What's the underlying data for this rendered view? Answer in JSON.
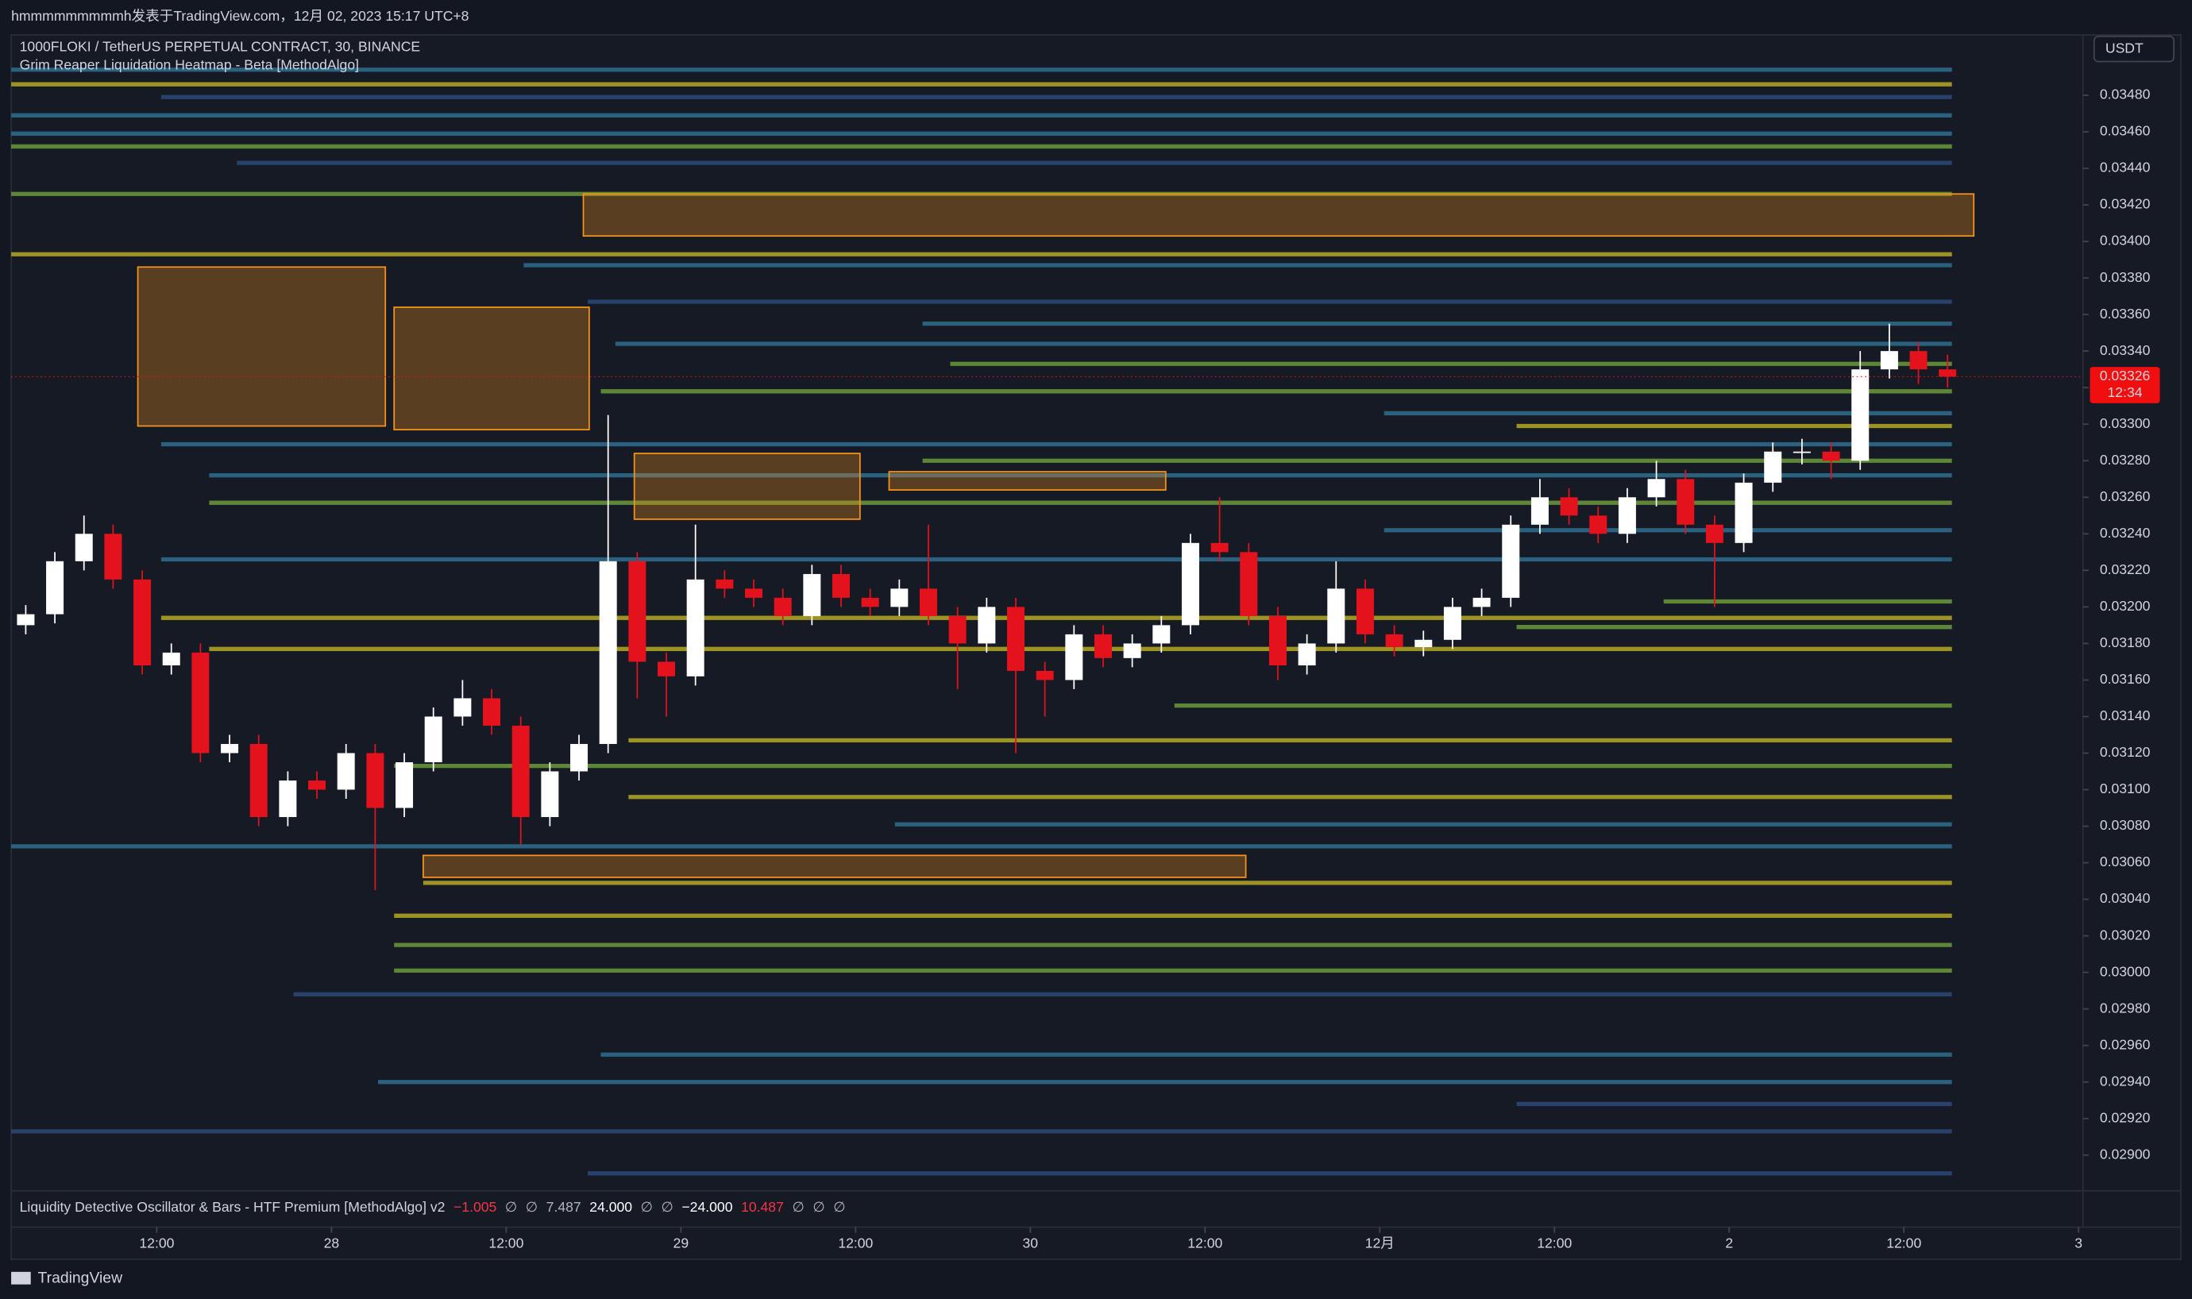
{
  "header": "hmmmmmmmmmh发表于TradingView.com，12月 02, 2023 15:17 UTC+8",
  "chart_data": {
    "type": "candlestick",
    "symbol": "1000FLOKI / TetherUS PERPETUAL CONTRACT, 30, BINANCE",
    "indicator": "Grim Reaper Liquidation Heatmap - Beta [MethodAlgo]",
    "currency": "USDT",
    "up_color": "#ffffff",
    "down_color": "#e3121c",
    "xlim": [
      0,
      142.3
    ],
    "ylim": [
      0.02882,
      0.03513
    ],
    "xticks": [
      {
        "value": 10,
        "label": "12:00"
      },
      {
        "value": 22,
        "label": "28"
      },
      {
        "value": 34,
        "label": "12:00"
      },
      {
        "value": 46,
        "label": "29"
      },
      {
        "value": 58,
        "label": "12:00"
      },
      {
        "value": 70,
        "label": "30"
      },
      {
        "value": 82,
        "label": "12:00"
      },
      {
        "value": 94,
        "label": "12月"
      },
      {
        "value": 106,
        "label": "12:00"
      },
      {
        "value": 118,
        "label": "2"
      },
      {
        "value": 130,
        "label": "12:00"
      },
      {
        "value": 142,
        "label": "3"
      }
    ],
    "yticks": [
      {
        "value": 0.0348,
        "label": "0.03480"
      },
      {
        "value": 0.0346,
        "label": "0.03460"
      },
      {
        "value": 0.0344,
        "label": "0.03440"
      },
      {
        "value": 0.0342,
        "label": "0.03420"
      },
      {
        "value": 0.034,
        "label": "0.03400"
      },
      {
        "value": 0.0338,
        "label": "0.03380"
      },
      {
        "value": 0.0336,
        "label": "0.03360"
      },
      {
        "value": 0.0334,
        "label": "0.03340"
      },
      {
        "value": 0.0332,
        "label": "0.03320"
      },
      {
        "value": 0.033,
        "label": "0.03300"
      },
      {
        "value": 0.0328,
        "label": "0.03280"
      },
      {
        "value": 0.0326,
        "label": "0.03260"
      },
      {
        "value": 0.0324,
        "label": "0.03240"
      },
      {
        "value": 0.0322,
        "label": "0.03220"
      },
      {
        "value": 0.032,
        "label": "0.03200"
      },
      {
        "value": 0.0318,
        "label": "0.03180"
      },
      {
        "value": 0.0316,
        "label": "0.03160"
      },
      {
        "value": 0.0314,
        "label": "0.03140"
      },
      {
        "value": 0.0312,
        "label": "0.03120"
      },
      {
        "value": 0.031,
        "label": "0.03100"
      },
      {
        "value": 0.0308,
        "label": "0.03080"
      },
      {
        "value": 0.0306,
        "label": "0.03060"
      },
      {
        "value": 0.0304,
        "label": "0.03040"
      },
      {
        "value": 0.0302,
        "label": "0.03020"
      },
      {
        "value": 0.03,
        "label": "0.03000"
      },
      {
        "value": 0.0298,
        "label": "0.02980"
      },
      {
        "value": 0.0296,
        "label": "0.02960"
      },
      {
        "value": 0.0294,
        "label": "0.02940"
      },
      {
        "value": 0.0292,
        "label": "0.02920"
      },
      {
        "value": 0.029,
        "label": "0.02900"
      }
    ],
    "last_price": 0.03326,
    "countdown": "12:34",
    "last_color": "#f00e0e",
    "candles": {
      "x": [
        1,
        3,
        5,
        7,
        9,
        11,
        13,
        15,
        17,
        19,
        21,
        23,
        25,
        27,
        29,
        31,
        33,
        35,
        37,
        39,
        41,
        43,
        45,
        47,
        49,
        51,
        53,
        55,
        57,
        59,
        61,
        63,
        65,
        67,
        69,
        71,
        73,
        75,
        77,
        79,
        81,
        83,
        85,
        87,
        89,
        91,
        93,
        95,
        97,
        99,
        101,
        103,
        105,
        107,
        109,
        111,
        113,
        115,
        117,
        119,
        121,
        123,
        125,
        127,
        129,
        131,
        133
      ],
      "open": [
        0.0319,
        0.03196,
        0.03225,
        0.0324,
        0.03215,
        0.03168,
        0.03175,
        0.0312,
        0.03125,
        0.03085,
        0.03105,
        0.031,
        0.0312,
        0.0309,
        0.03115,
        0.0314,
        0.0315,
        0.03135,
        0.03085,
        0.0311,
        0.03125,
        0.03225,
        0.0317,
        0.03162,
        0.03215,
        0.0321,
        0.03205,
        0.03195,
        0.03218,
        0.03205,
        0.032,
        0.0321,
        0.03195,
        0.0318,
        0.032,
        0.03165,
        0.0316,
        0.03185,
        0.03172,
        0.0318,
        0.0319,
        0.03235,
        0.0323,
        0.03195,
        0.03168,
        0.0318,
        0.0321,
        0.03185,
        0.03178,
        0.03182,
        0.032,
        0.03205,
        0.03245,
        0.0326,
        0.0325,
        0.0324,
        0.0326,
        0.0327,
        0.03245,
        0.03235,
        0.03268,
        0.03285,
        0.03285,
        0.0328,
        0.0333,
        0.0334,
        0.0333
      ],
      "high": [
        0.03201,
        0.0323,
        0.0325,
        0.03245,
        0.0322,
        0.0318,
        0.0318,
        0.0313,
        0.0313,
        0.0311,
        0.0311,
        0.03125,
        0.03125,
        0.0312,
        0.03145,
        0.0316,
        0.03155,
        0.0314,
        0.03115,
        0.0313,
        0.03305,
        0.0323,
        0.03175,
        0.03245,
        0.0322,
        0.03215,
        0.0321,
        0.03223,
        0.03223,
        0.0321,
        0.03215,
        0.03245,
        0.032,
        0.03205,
        0.03205,
        0.0317,
        0.0319,
        0.0319,
        0.03185,
        0.03195,
        0.0324,
        0.0326,
        0.03235,
        0.032,
        0.03185,
        0.03225,
        0.03215,
        0.0319,
        0.03187,
        0.03205,
        0.0321,
        0.0325,
        0.0327,
        0.03265,
        0.03255,
        0.03265,
        0.0328,
        0.03275,
        0.0325,
        0.03273,
        0.0329,
        0.03292,
        0.0329,
        0.0334,
        0.03355,
        0.03345,
        0.03338
      ],
      "low": [
        0.03185,
        0.03191,
        0.0322,
        0.0321,
        0.03163,
        0.03163,
        0.03115,
        0.03115,
        0.0308,
        0.0308,
        0.03095,
        0.03095,
        0.03045,
        0.03085,
        0.0311,
        0.03135,
        0.0313,
        0.0307,
        0.0308,
        0.03105,
        0.0312,
        0.0315,
        0.0314,
        0.03157,
        0.03205,
        0.032,
        0.0319,
        0.0319,
        0.032,
        0.03195,
        0.03195,
        0.0319,
        0.03155,
        0.03175,
        0.0312,
        0.0314,
        0.03155,
        0.03167,
        0.03167,
        0.03175,
        0.03185,
        0.03225,
        0.0319,
        0.0316,
        0.03163,
        0.03175,
        0.0318,
        0.03173,
        0.03173,
        0.03177,
        0.03195,
        0.032,
        0.0324,
        0.03245,
        0.03235,
        0.03235,
        0.03255,
        0.0324,
        0.032,
        0.0323,
        0.03263,
        0.03278,
        0.0327,
        0.03275,
        0.03325,
        0.03322,
        0.0332
      ],
      "close": [
        0.03196,
        0.03225,
        0.0324,
        0.03215,
        0.03168,
        0.03175,
        0.0312,
        0.03125,
        0.03085,
        0.03105,
        0.031,
        0.0312,
        0.0309,
        0.03115,
        0.0314,
        0.0315,
        0.03135,
        0.03085,
        0.0311,
        0.03125,
        0.03225,
        0.0317,
        0.03162,
        0.03215,
        0.0321,
        0.03205,
        0.03195,
        0.03218,
        0.03205,
        0.032,
        0.0321,
        0.03195,
        0.0318,
        0.032,
        0.03165,
        0.0316,
        0.03185,
        0.03172,
        0.0318,
        0.0319,
        0.03235,
        0.0323,
        0.03195,
        0.03168,
        0.0318,
        0.0321,
        0.03185,
        0.03178,
        0.03182,
        0.032,
        0.03205,
        0.03245,
        0.0326,
        0.0325,
        0.0324,
        0.0326,
        0.0327,
        0.03245,
        0.03235,
        0.03268,
        0.03285,
        0.03285,
        0.0328,
        0.0333,
        0.0334,
        0.0333,
        0.03326
      ]
    },
    "levels_end": 133.3,
    "levels": [
      {
        "price": 0.03494,
        "start": 0,
        "color": "#2e6e8e"
      },
      {
        "price": 0.03486,
        "start": 0,
        "color": "#b5a824"
      },
      {
        "price": 0.03479,
        "start": 10.3,
        "color": "#2a4a7a"
      },
      {
        "price": 0.03469,
        "start": 0,
        "color": "#2e6e8e"
      },
      {
        "price": 0.03459,
        "start": 0,
        "color": "#2e6e8e"
      },
      {
        "price": 0.03452,
        "start": 0,
        "color": "#6a9a3a"
      },
      {
        "price": 0.03443,
        "start": 15.5,
        "color": "#2a4a7a"
      },
      {
        "price": 0.03426,
        "start": 0,
        "color": "#6a9a3a"
      },
      {
        "price": 0.03393,
        "start": 0,
        "color": "#b5a824"
      },
      {
        "price": 0.03387,
        "start": 35.2,
        "color": "#2e6e8e"
      },
      {
        "price": 0.03367,
        "start": 39.6,
        "color": "#2a4a7a"
      },
      {
        "price": 0.03355,
        "start": 62.6,
        "color": "#2e6e8e"
      },
      {
        "price": 0.03344,
        "start": 41.5,
        "color": "#2e6e8e"
      },
      {
        "price": 0.03333,
        "start": 64.5,
        "color": "#6a9a3a"
      },
      {
        "price": 0.03318,
        "start": 40.5,
        "color": "#6a9a3a"
      },
      {
        "price": 0.03306,
        "start": 94.3,
        "color": "#2e6e8e"
      },
      {
        "price": 0.03299,
        "start": 103.4,
        "color": "#b5a824"
      },
      {
        "price": 0.03289,
        "start": 10.3,
        "color": "#2e6e8e"
      },
      {
        "price": 0.0328,
        "start": 62.6,
        "color": "#6a9a3a"
      },
      {
        "price": 0.03272,
        "start": 13.6,
        "color": "#2e6e8e"
      },
      {
        "price": 0.03257,
        "start": 13.6,
        "color": "#6a9a3a"
      },
      {
        "price": 0.03242,
        "start": 94.3,
        "color": "#2e6e8e"
      },
      {
        "price": 0.03226,
        "start": 10.3,
        "color": "#2e6e8e"
      },
      {
        "price": 0.03203,
        "start": 113.5,
        "color": "#6a9a3a"
      },
      {
        "price": 0.03194,
        "start": 10.3,
        "color": "#b5a824"
      },
      {
        "price": 0.03189,
        "start": 103.4,
        "color": "#6a9a3a"
      },
      {
        "price": 0.03177,
        "start": 13.6,
        "color": "#b5a824"
      },
      {
        "price": 0.03146,
        "start": 79.9,
        "color": "#6a9a3a"
      },
      {
        "price": 0.03127,
        "start": 42.4,
        "color": "#b5a824"
      },
      {
        "price": 0.03113,
        "start": 26.3,
        "color": "#6a9a3a"
      },
      {
        "price": 0.03096,
        "start": 42.4,
        "color": "#b5a824"
      },
      {
        "price": 0.03081,
        "start": 60.7,
        "color": "#2e6e8e"
      },
      {
        "price": 0.03069,
        "start": 0,
        "color": "#2e6e8e"
      },
      {
        "price": 0.03049,
        "start": 28.3,
        "color": "#b5a824"
      },
      {
        "price": 0.03031,
        "start": 26.3,
        "color": "#b5a824"
      },
      {
        "price": 0.03015,
        "start": 26.3,
        "color": "#6a9a3a"
      },
      {
        "price": 0.03001,
        "start": 26.3,
        "color": "#6a9a3a"
      },
      {
        "price": 0.02988,
        "start": 19.4,
        "color": "#2a4a7a"
      },
      {
        "price": 0.02955,
        "start": 40.5,
        "color": "#2e6e8e"
      },
      {
        "price": 0.0294,
        "start": 25.2,
        "color": "#2e6e8e"
      },
      {
        "price": 0.02928,
        "start": 103.4,
        "color": "#2a4a7a"
      },
      {
        "price": 0.02913,
        "start": 0,
        "color": "#2a4a7a"
      },
      {
        "price": 0.0289,
        "start": 39.6,
        "color": "#2a4a7a"
      }
    ],
    "zone_color": "#f7931a",
    "zones": [
      {
        "x0": 8.7,
        "x1": 25.7,
        "y0": 0.03299,
        "y1": 0.03386
      },
      {
        "x0": 26.3,
        "x1": 39.7,
        "y0": 0.03297,
        "y1": 0.03364
      },
      {
        "x0": 39.3,
        "x1": 134.8,
        "y0": 0.03403,
        "y1": 0.03426
      },
      {
        "x0": 42.8,
        "x1": 58.3,
        "y0": 0.03248,
        "y1": 0.03284
      },
      {
        "x0": 60.3,
        "x1": 79.3,
        "y0": 0.03264,
        "y1": 0.03274
      },
      {
        "x0": 28.3,
        "x1": 84.8,
        "y0": 0.03052,
        "y1": 0.03064
      }
    ]
  },
  "oscillator": {
    "name": "Liquidity Detective Oscillator & Bars - HTF Premium [MethodAlgo] v2",
    "values": [
      {
        "text": "−1.005",
        "color": "#f23645"
      },
      {
        "text": "∅",
        "color": "#b2b5be"
      },
      {
        "text": "∅",
        "color": "#b2b5be"
      },
      {
        "text": "7.487",
        "color": "#b2b5be"
      },
      {
        "text": "24.000",
        "color": "#ffffff"
      },
      {
        "text": "∅",
        "color": "#b2b5be"
      },
      {
        "text": "∅",
        "color": "#b2b5be"
      },
      {
        "text": "−24.000",
        "color": "#ffffff"
      },
      {
        "text": "10.487",
        "color": "#f23645"
      },
      {
        "text": "∅",
        "color": "#b2b5be"
      },
      {
        "text": "∅",
        "color": "#b2b5be"
      },
      {
        "text": "∅",
        "color": "#b2b5be"
      }
    ]
  },
  "footer": "TradingView"
}
